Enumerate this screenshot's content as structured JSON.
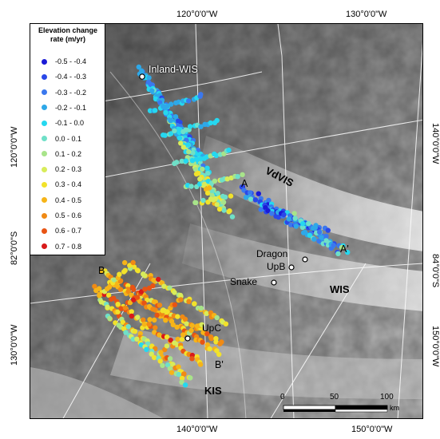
{
  "coordinates": {
    "top": [
      "120°0'0\"W",
      "130°0'0\"W"
    ],
    "bottom": [
      "140°0'0\"W",
      "150°0'0\"W"
    ],
    "left": [
      "120°0'0\"W",
      "82°0'0\"S",
      "130°0'0\"W"
    ],
    "right": [
      "140°0'0\"W",
      "84°0'0\"S",
      "150°0'0\"W"
    ]
  },
  "legend": {
    "title_line1": "Elevation change",
    "title_line2": "rate (m/yr)",
    "items": [
      {
        "label": "-0.5 - -0.4",
        "color": "#1a1ad6"
      },
      {
        "label": "-0.4 - -0.3",
        "color": "#2a48e8"
      },
      {
        "label": "-0.3 - -0.2",
        "color": "#3b78ee"
      },
      {
        "label": "-0.2 - -0.1",
        "color": "#2ea8e8"
      },
      {
        "label": "-0.1 - 0.0",
        "color": "#25d8f0"
      },
      {
        "label": "0.0 - 0.1",
        "color": "#6fe0c8"
      },
      {
        "label": "0.1 - 0.2",
        "color": "#a8e48a"
      },
      {
        "label": "0.2 - 0.3",
        "color": "#d8ec5a"
      },
      {
        "label": "0.3 - 0.4",
        "color": "#f2e22a"
      },
      {
        "label": "0.4 - 0.5",
        "color": "#f6b418"
      },
      {
        "label": "0.5 - 0.6",
        "color": "#f08a14"
      },
      {
        "label": "0.6 - 0.7",
        "color": "#e85414"
      },
      {
        "label": "0.7 - 0.8",
        "color": "#d81a1a"
      }
    ]
  },
  "places": {
    "inland_wis": "Inland-WIS",
    "dragon": "Dragon",
    "upb": "UpB",
    "snake": "Snake",
    "upc": "UpC"
  },
  "regions": {
    "vdvis": "VdVIS",
    "wis": "WIS",
    "kis": "KIS"
  },
  "profiles": {
    "a": "A",
    "a_prime": "A'",
    "b": "B",
    "b_prime": "B'"
  },
  "scale_bar": {
    "ticks": [
      "0",
      "50",
      "100"
    ],
    "unit": "km"
  }
}
